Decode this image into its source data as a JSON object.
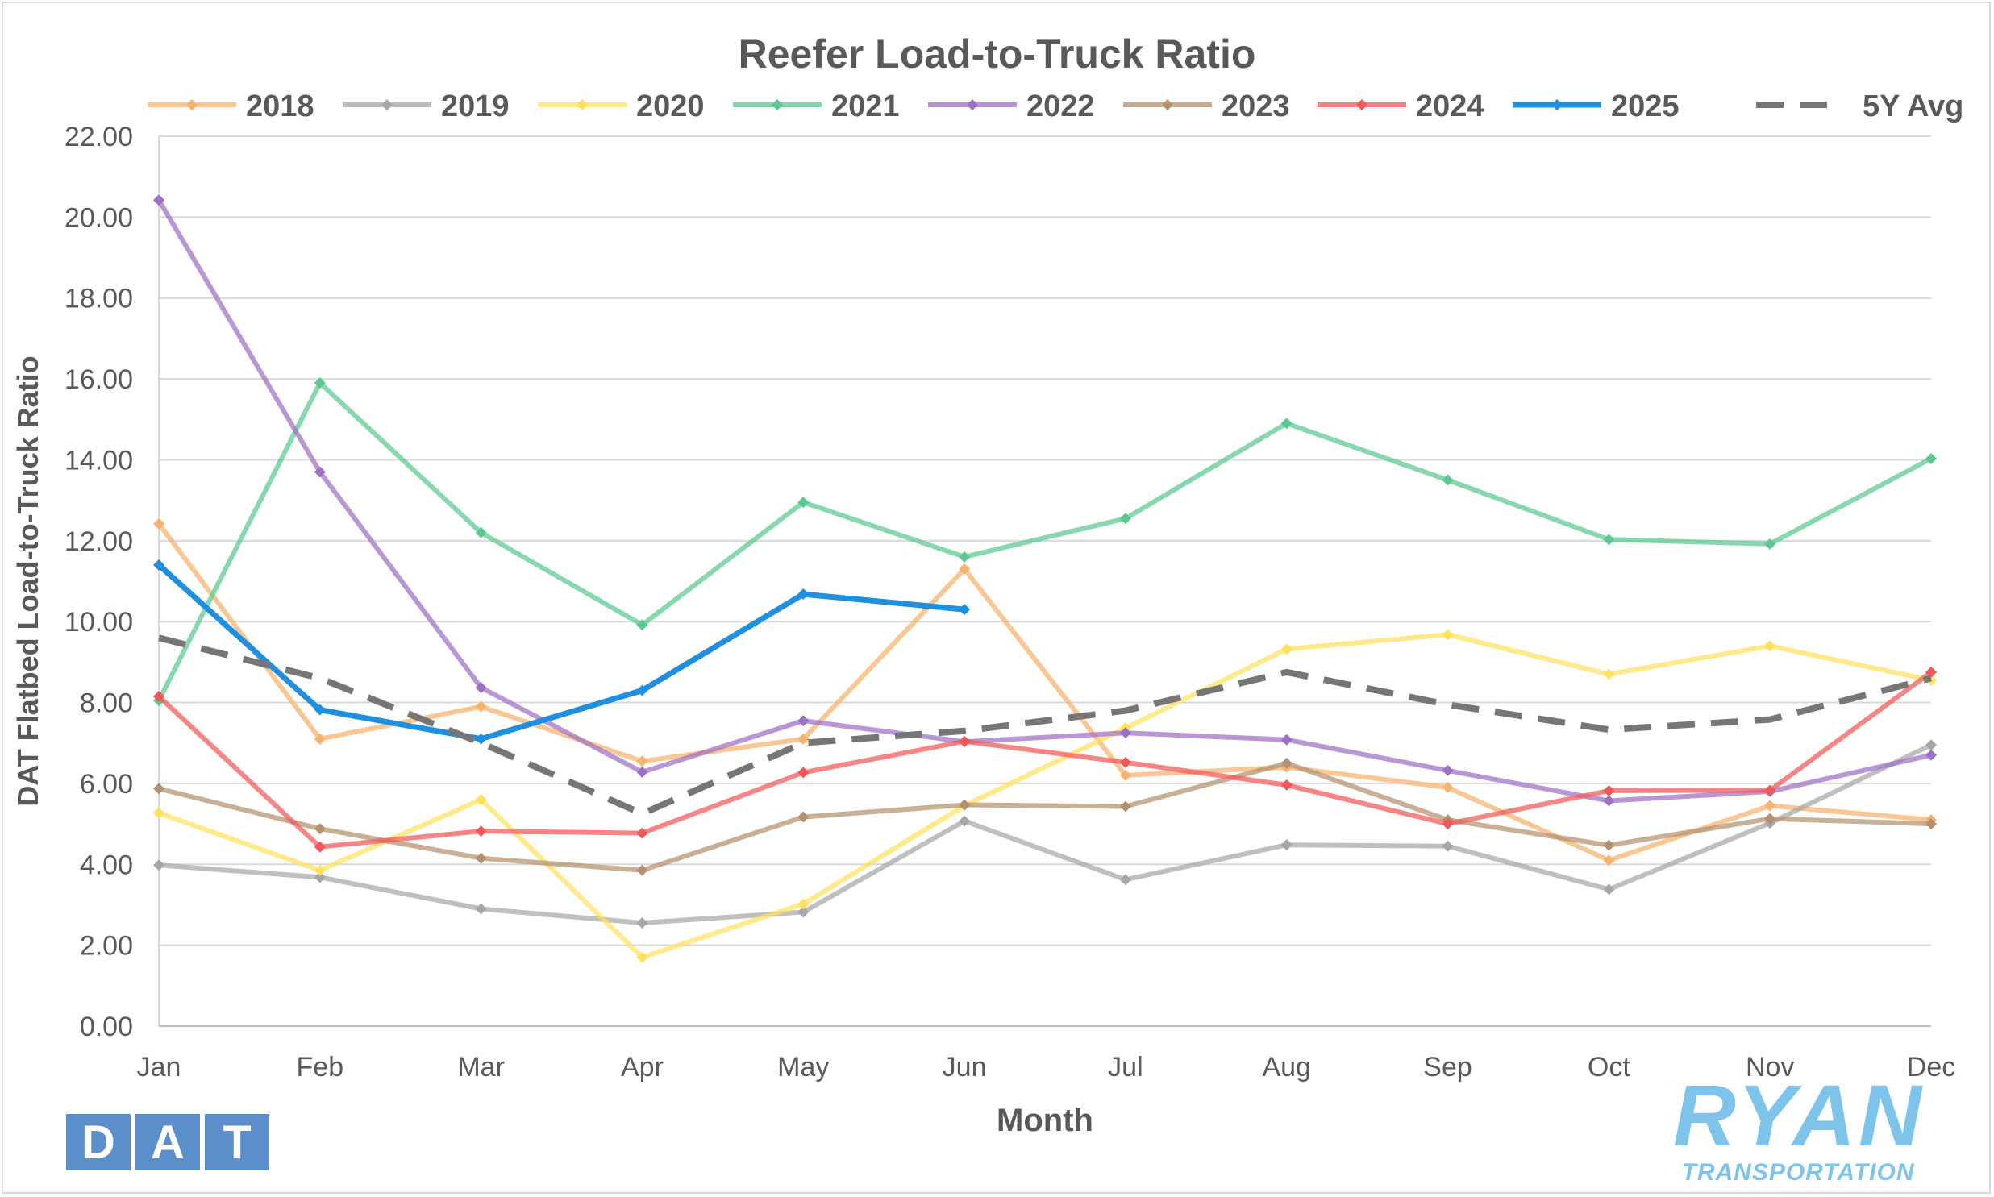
{
  "chart_data": {
    "type": "line",
    "title": "Reefer Load-to-Truck Ratio",
    "xlabel": "Month",
    "ylabel": "DAT Flatbed Load-to-Truck Ratio",
    "ylim": [
      0,
      22
    ],
    "ytick_labels": [
      "0.00",
      "2.00",
      "4.00",
      "6.00",
      "8.00",
      "10.00",
      "12.00",
      "14.00",
      "16.00",
      "18.00",
      "20.00",
      "22.00"
    ],
    "categories": [
      "Jan",
      "Feb",
      "Mar",
      "Apr",
      "May",
      "Jun",
      "Jul",
      "Aug",
      "Sep",
      "Oct",
      "Nov",
      "Dec"
    ],
    "grid": "horizontal",
    "legend_position": "top",
    "series": [
      {
        "name": "2018",
        "color": "#f7b26b",
        "style": "solid-marker",
        "values": [
          12.42,
          7.1,
          7.9,
          6.55,
          7.1,
          11.3,
          6.2,
          6.4,
          5.9,
          4.1,
          5.45,
          5.1
        ]
      },
      {
        "name": "2019",
        "color": "#a6a6a6",
        "style": "solid-marker",
        "values": [
          3.98,
          3.68,
          2.9,
          2.55,
          2.82,
          5.07,
          3.62,
          4.48,
          4.45,
          3.38,
          5.02,
          6.95
        ]
      },
      {
        "name": "2020",
        "color": "#ffe15c",
        "style": "solid-marker",
        "values": [
          5.27,
          3.85,
          5.6,
          1.7,
          3.02,
          5.45,
          7.37,
          9.32,
          9.68,
          8.7,
          9.4,
          8.55
        ]
      },
      {
        "name": "2021",
        "color": "#5ac98f",
        "style": "solid-marker",
        "values": [
          8.05,
          15.9,
          12.2,
          9.92,
          12.95,
          11.6,
          12.55,
          14.9,
          13.5,
          12.03,
          11.92,
          14.03
        ]
      },
      {
        "name": "2022",
        "color": "#9e6fc4",
        "style": "solid-marker",
        "values": [
          20.42,
          13.7,
          8.37,
          6.28,
          7.55,
          7.03,
          7.25,
          7.08,
          6.32,
          5.57,
          5.8,
          6.7
        ]
      },
      {
        "name": "2023",
        "color": "#b3906e",
        "style": "solid-marker",
        "values": [
          5.87,
          4.88,
          4.15,
          3.85,
          5.17,
          5.47,
          5.43,
          6.5,
          5.1,
          4.47,
          5.13,
          5.0
        ]
      },
      {
        "name": "2024",
        "color": "#f25757",
        "style": "solid-marker",
        "values": [
          8.15,
          4.43,
          4.82,
          4.77,
          6.27,
          7.04,
          6.52,
          5.96,
          5.0,
          5.82,
          5.83,
          8.75
        ]
      },
      {
        "name": "2025",
        "color": "#1f8fe0",
        "style": "bold-marker",
        "values": [
          11.4,
          7.82,
          7.1,
          8.3,
          10.68,
          10.3,
          null,
          null,
          null,
          null,
          null,
          null
        ]
      },
      {
        "name": "5Y Avg",
        "color": "#767676",
        "style": "dashed",
        "values": [
          9.6,
          8.6,
          7.0,
          5.25,
          7.0,
          7.3,
          7.8,
          8.75,
          7.95,
          7.33,
          7.58,
          8.6
        ]
      }
    ]
  },
  "logos": {
    "dat": [
      "D",
      "A",
      "T"
    ],
    "ryan": "RYAN",
    "ryan_sub": "TRANSPORTATION"
  }
}
